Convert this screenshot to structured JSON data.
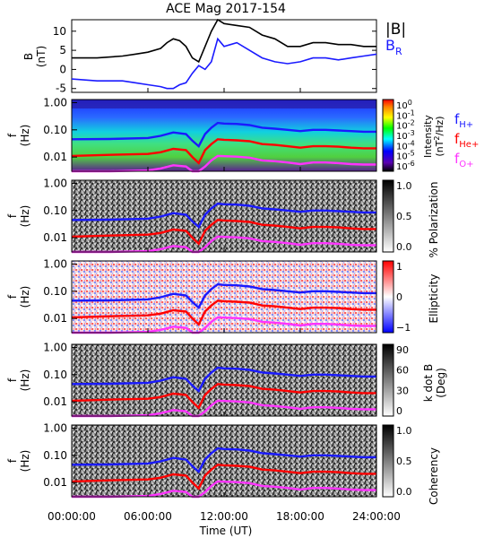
{
  "title": "ACE Mag 2017-154",
  "colors": {
    "B_total": "#000000",
    "B_R": "#1a1aff",
    "f_Hplus": "#1a1aff",
    "f_Heplus": "#ff0000",
    "f_Oplus": "#ff33ff"
  },
  "x_axis": {
    "label": "Time (UT)",
    "ticks": [
      "00:00:00",
      "06:00:00",
      "12:00:00",
      "18:00:00",
      "24:00:00"
    ]
  },
  "panel_b": {
    "ylabel_line1": "B",
    "ylabel_line2": "(nT)",
    "yticks": [
      "10",
      "5",
      "0",
      "-5"
    ],
    "legend_total": "|B|",
    "legend_r_main": "B",
    "legend_r_sub": "R"
  },
  "spectral_panels": {
    "ylabel_line1": "f",
    "ylabel_line2": "(Hz)",
    "yticks": [
      "1.00",
      "0.10",
      "0.01"
    ]
  },
  "panel_intensity": {
    "cbar_label_main": "Intensity",
    "cbar_label_units_pre": "(nT",
    "cbar_label_units_exp": "2",
    "cbar_label_units_post": "/Hz)",
    "cbar_ticks_base": [
      "10",
      "10",
      "10",
      "10",
      "10",
      "10",
      "10"
    ],
    "cbar_ticks_exp": [
      "0",
      "-1",
      "-2",
      "-3",
      "-4",
      "-5",
      "-6"
    ],
    "legend": [
      {
        "main": "f",
        "sub": "H+"
      },
      {
        "main": "f",
        "sub": "He+"
      },
      {
        "main": "f",
        "sub": "O+"
      }
    ]
  },
  "panel_polarization": {
    "cbar_label": "% Polarization",
    "cbar_ticks": [
      "1.0",
      "0.5",
      "0.0"
    ]
  },
  "panel_ellipticity": {
    "cbar_label": "Ellipticity",
    "cbar_ticks": [
      "1",
      "0",
      "−1"
    ]
  },
  "panel_kdotb": {
    "cbar_label_line1": "k dot B",
    "cbar_label_line2": "(Deg)",
    "cbar_ticks": [
      "90",
      "60",
      "30",
      "0"
    ]
  },
  "panel_coherency": {
    "cbar_label": "Coherency",
    "cbar_ticks": [
      "1.0",
      "0.5",
      "0.0"
    ]
  },
  "chart_data": {
    "type": "line",
    "title": "ACE Mag 2017-154",
    "xlabel": "Time (UT)",
    "x_unit": "hours UT",
    "xlim": [
      0,
      24
    ],
    "panels": [
      {
        "name": "B",
        "ylabel": "B (nT)",
        "ylim": [
          -6,
          13
        ],
        "series": [
          {
            "name": "|B|",
            "x": [
              0,
              2,
              4,
              5,
              6,
              7,
              7.5,
              8,
              8.5,
              9,
              9.5,
              10,
              10.5,
              11,
              11.5,
              12,
              13,
              14,
              15,
              16,
              17,
              18,
              19,
              20,
              21,
              22,
              23,
              24
            ],
            "values": [
              3,
              3,
              3.5,
              4,
              4.5,
              5.5,
              7,
              8,
              7.5,
              6,
              3,
              2,
              6,
              10,
              13,
              12,
              11.5,
              11,
              9,
              8,
              6,
              6,
              7,
              7,
              6.5,
              6.5,
              6,
              6
            ]
          },
          {
            "name": "B",
            "x": [
              0,
              2,
              4,
              5,
              6,
              7,
              7.5,
              8,
              8.5,
              9,
              9.5,
              10,
              10.5,
              11,
              11.5,
              12,
              13,
              14,
              15,
              16,
              17,
              18,
              19,
              20,
              21,
              22,
              23,
              24
            ],
            "values": [
              -2.5,
              -3,
              -3,
              -3.5,
              -4,
              -4.5,
              -5,
              -5,
              -4,
              -3.5,
              -1,
              1,
              0,
              2,
              8,
              6,
              7,
              5,
              3,
              2,
              1.5,
              2,
              3,
              3,
              2.5,
              3,
              3.5,
              4
            ]
          }
        ]
      },
      {
        "name": "Intensity",
        "type": "heatmap",
        "ylabel": "f (Hz)",
        "yscale": "log",
        "ylim": [
          0.003,
          1.0
        ],
        "colorbar_label": "Intensity (nT^2/Hz)",
        "colorbar_range": [
          1e-06,
          1
        ]
      },
      {
        "name": "Polarization",
        "type": "heatmap",
        "ylabel": "f (Hz)",
        "yscale": "log",
        "colorbar_label": "% Polarization",
        "colorbar_range": [
          0,
          1
        ]
      },
      {
        "name": "Ellipticity",
        "type": "heatmap",
        "ylabel": "f (Hz)",
        "yscale": "log",
        "colorbar_label": "Ellipticity",
        "colorbar_range": [
          -1,
          1
        ]
      },
      {
        "name": "k dot B",
        "type": "heatmap",
        "ylabel": "f (Hz)",
        "yscale": "log",
        "colorbar_label": "k dot B (Deg)",
        "colorbar_range": [
          0,
          90
        ]
      },
      {
        "name": "Coherency",
        "type": "heatmap",
        "ylabel": "f (Hz)",
        "yscale": "log",
        "colorbar_label": "Coherency",
        "colorbar_range": [
          0,
          1
        ]
      }
    ],
    "gyrofrequency_lines": [
      {
        "name": "f H+",
        "x": [
          0,
          3,
          6,
          7,
          8,
          9,
          9.5,
          10,
          10.5,
          11,
          11.5,
          12,
          13,
          14,
          15,
          16,
          17,
          18,
          19,
          20,
          21,
          22,
          23,
          24
        ],
        "values": [
          0.045,
          0.046,
          0.05,
          0.06,
          0.08,
          0.07,
          0.04,
          0.025,
          0.07,
          0.12,
          0.18,
          0.17,
          0.165,
          0.15,
          0.12,
          0.11,
          0.1,
          0.09,
          0.1,
          0.1,
          0.095,
          0.09,
          0.085,
          0.085
        ]
      },
      {
        "name": "f He+",
        "x": [
          0,
          3,
          6,
          7,
          8,
          9,
          9.5,
          10,
          10.5,
          11,
          11.5,
          12,
          13,
          14,
          15,
          16,
          17,
          18,
          19,
          20,
          21,
          22,
          23,
          24
        ],
        "values": [
          0.011,
          0.012,
          0.013,
          0.015,
          0.02,
          0.018,
          0.01,
          0.006,
          0.018,
          0.03,
          0.045,
          0.043,
          0.041,
          0.038,
          0.03,
          0.028,
          0.025,
          0.022,
          0.025,
          0.025,
          0.024,
          0.022,
          0.021,
          0.021
        ]
      },
      {
        "name": "f O+",
        "x": [
          0,
          3,
          6,
          7,
          8,
          9,
          9.5,
          10,
          10.5,
          11,
          11.5,
          12,
          13,
          14,
          15,
          16,
          17,
          18,
          19,
          20,
          21,
          22,
          23,
          24
        ],
        "values": [
          0.0028,
          0.003,
          0.0032,
          0.0038,
          0.005,
          0.0045,
          0.0025,
          0.0016,
          0.0045,
          0.0075,
          0.011,
          0.0107,
          0.0103,
          0.0095,
          0.0075,
          0.007,
          0.0063,
          0.0055,
          0.0063,
          0.0063,
          0.006,
          0.0055,
          0.0053,
          0.0053
        ]
      }
    ]
  }
}
